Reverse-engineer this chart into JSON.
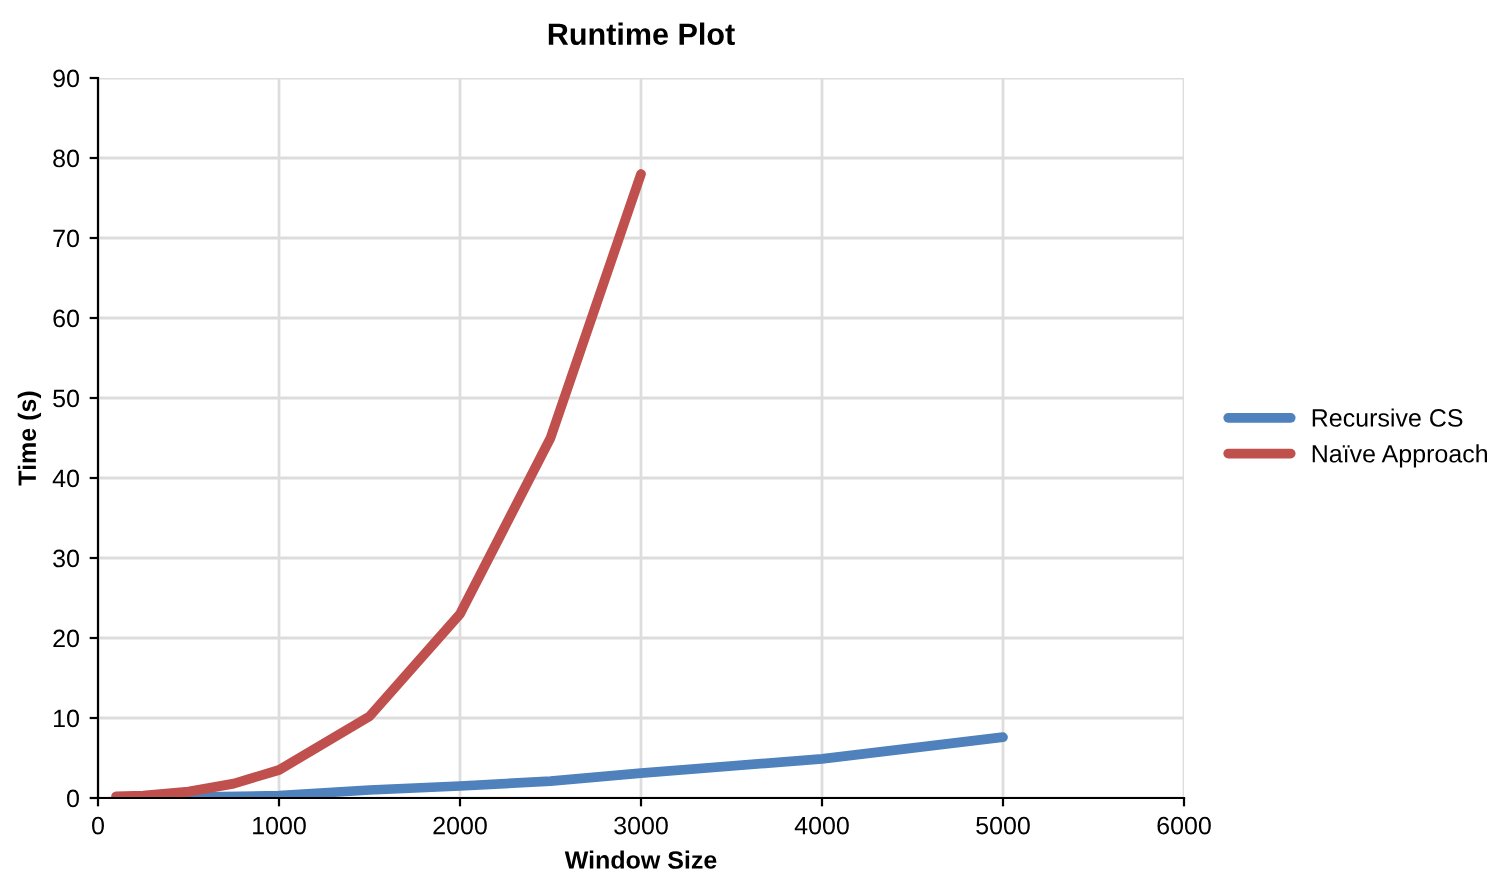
{
  "chart_data": {
    "type": "line",
    "title": "Runtime Plot",
    "xlabel": "Window Size",
    "ylabel": "Time (s)",
    "series": [
      {
        "name": "Recursive CS",
        "color": "#4f81bd",
        "x": [
          100,
          500,
          1000,
          1500,
          2000,
          2500,
          3000,
          4000,
          5000
        ],
        "values": [
          0,
          0.1,
          0.3,
          1.0,
          1.5,
          2.1,
          3.1,
          4.9,
          7.6
        ]
      },
      {
        "name": "Naïve Approach",
        "color": "#c0504d",
        "x": [
          100,
          250,
          500,
          750,
          1000,
          1500,
          2000,
          2500,
          3000
        ],
        "values": [
          0.2,
          0.3,
          0.8,
          1.8,
          3.5,
          10.2,
          23,
          45,
          78
        ]
      }
    ],
    "xlim": [
      0,
      6000
    ],
    "xticks": [
      0,
      1000,
      2000,
      3000,
      4000,
      5000,
      6000
    ],
    "ylim": [
      0,
      90
    ],
    "yticks": [
      0,
      10,
      20,
      30,
      40,
      50,
      60,
      70,
      80,
      90
    ],
    "grid": true,
    "legend": "right",
    "marker": "none",
    "line_style": "solid"
  }
}
